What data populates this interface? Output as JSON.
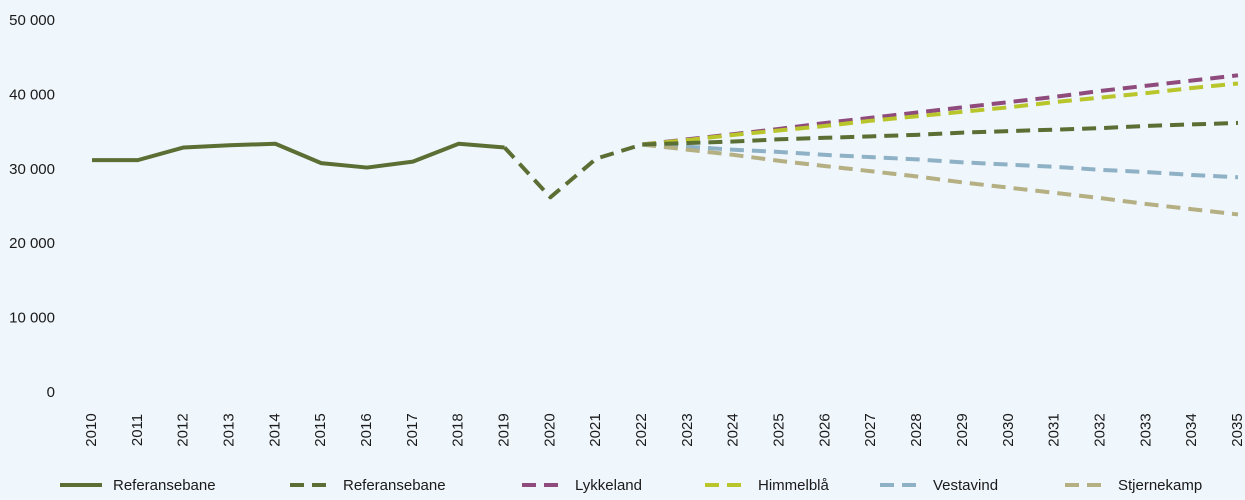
{
  "chart_data": {
    "type": "line",
    "categories": [
      "2010",
      "2011",
      "2012",
      "2013",
      "2014",
      "2015",
      "2016",
      "2017",
      "2018",
      "2019",
      "2020",
      "2021",
      "2022",
      "2023",
      "2024",
      "2025",
      "2026",
      "2027",
      "2028",
      "2029",
      "2030",
      "2031",
      "2032",
      "2033",
      "2034",
      "2035"
    ],
    "ylim": [
      0,
      50000
    ],
    "yticks": [
      {
        "value": 0,
        "label": "0"
      },
      {
        "value": 10000,
        "label": "10 000"
      },
      {
        "value": 20000,
        "label": "20 000"
      },
      {
        "value": 30000,
        "label": "30 000"
      },
      {
        "value": 40000,
        "label": "40 000"
      },
      {
        "value": 50000,
        "label": "50 000"
      }
    ],
    "grid": false,
    "series": [
      {
        "name": "Referansebane",
        "color": "#5b6f34",
        "dashed": false,
        "values": [
          31300,
          31300,
          33000,
          33300,
          33500,
          30900,
          30300,
          31100,
          33500,
          33000,
          null,
          null,
          null,
          null,
          null,
          null,
          null,
          null,
          null,
          null,
          null,
          null,
          null,
          null,
          null,
          null
        ]
      },
      {
        "name": "Referansebane",
        "color": "#5b6f34",
        "dashed": true,
        "values": [
          null,
          null,
          null,
          null,
          null,
          null,
          null,
          null,
          null,
          33000,
          26300,
          31500,
          33400,
          33600,
          33800,
          34100,
          34300,
          34500,
          34700,
          35000,
          35200,
          35400,
          35600,
          35900,
          36100,
          36300
        ]
      },
      {
        "name": "Lykkeland",
        "color": "#8e4b7c",
        "dashed": true,
        "values": [
          null,
          null,
          null,
          null,
          null,
          null,
          null,
          null,
          null,
          null,
          null,
          null,
          33400,
          34100,
          34800,
          35500,
          36300,
          37000,
          37700,
          38400,
          39100,
          39800,
          40600,
          41300,
          42000,
          42700
        ]
      },
      {
        "name": "Himmelblå",
        "color": "#b9c62b",
        "dashed": true,
        "values": [
          null,
          null,
          null,
          null,
          null,
          null,
          null,
          null,
          null,
          null,
          null,
          null,
          33400,
          34000,
          34700,
          35300,
          35900,
          36600,
          37200,
          37800,
          38400,
          39100,
          39700,
          40300,
          41000,
          41600
        ]
      },
      {
        "name": "Vestavind",
        "color": "#8fb1c6",
        "dashed": true,
        "values": [
          null,
          null,
          null,
          null,
          null,
          null,
          null,
          null,
          null,
          null,
          null,
          null,
          33400,
          33100,
          32700,
          32400,
          32000,
          31700,
          31400,
          31000,
          30700,
          30400,
          30000,
          29700,
          29300,
          29000
        ]
      },
      {
        "name": "Stjernekamp",
        "color": "#b5b083",
        "dashed": true,
        "values": [
          null,
          null,
          null,
          null,
          null,
          null,
          null,
          null,
          null,
          null,
          null,
          null,
          33400,
          32700,
          32000,
          31200,
          30500,
          29800,
          29100,
          28300,
          27600,
          26900,
          26200,
          25400,
          24700,
          24000
        ]
      }
    ]
  }
}
